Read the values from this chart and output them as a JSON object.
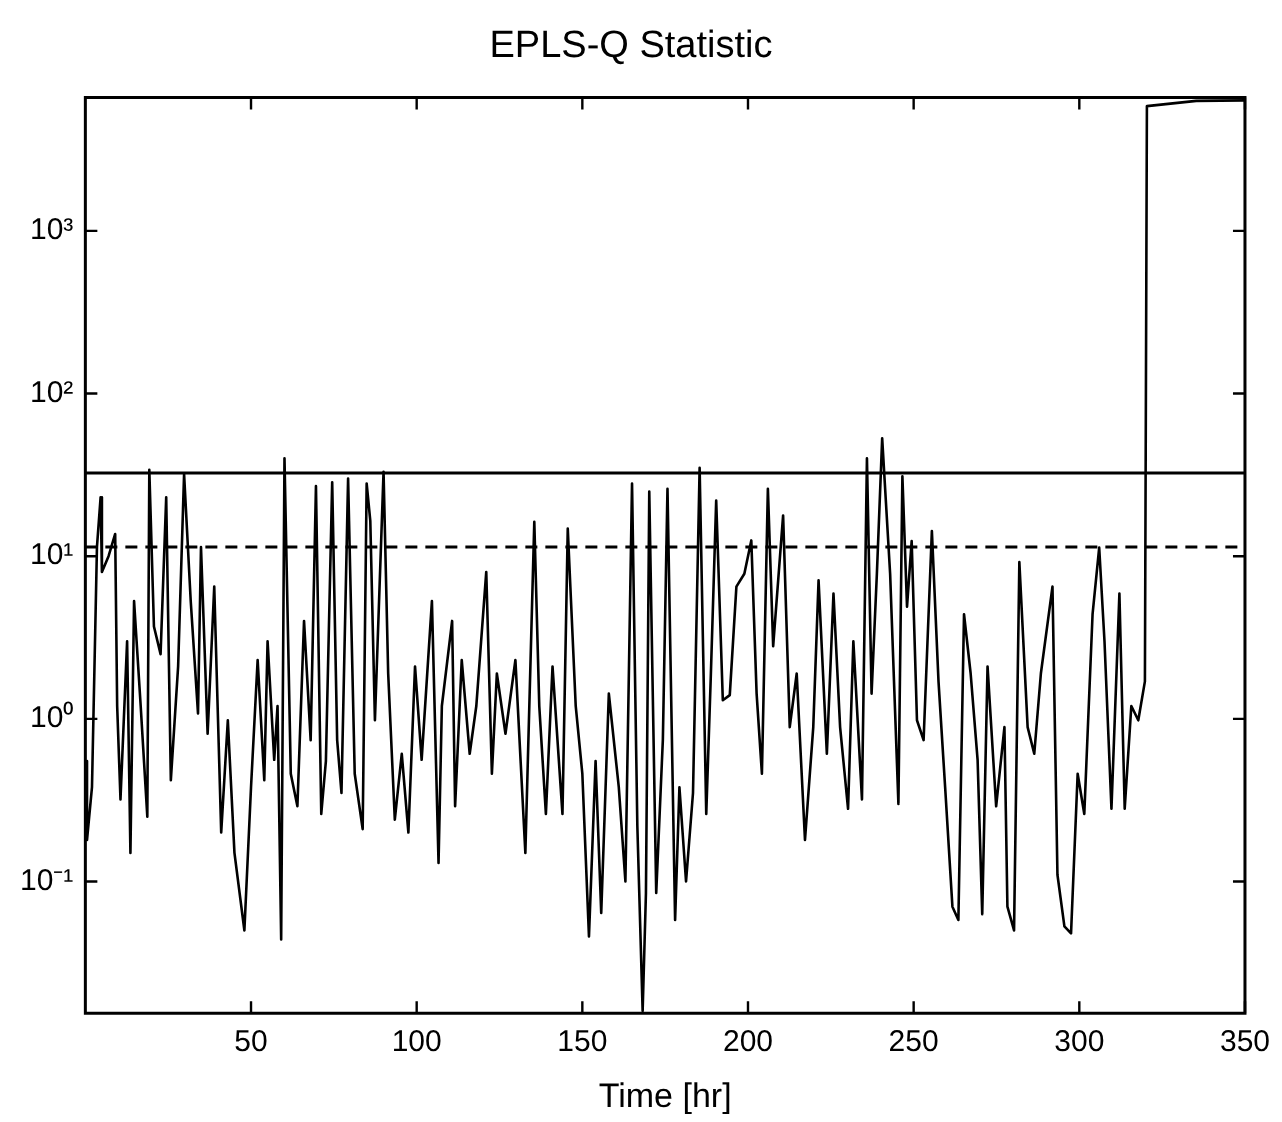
{
  "chart_data": {
    "type": "line",
    "title": "EPLS-Q Statistic",
    "xlabel": "Time [hr]",
    "x": [
      0.3,
      0.5,
      2,
      3.5,
      4.6,
      5,
      7,
      9,
      9.6,
      10.6,
      12.6,
      13.6,
      14.7,
      16.7,
      18.7,
      19.3,
      20.7,
      22.7,
      24.4,
      25.8,
      28,
      29.8,
      31.8,
      34,
      34.9,
      36.9,
      38.9,
      41,
      43,
      45,
      48,
      50,
      52,
      54,
      55,
      57,
      58,
      59.1,
      60.1,
      62,
      64,
      66,
      68,
      69.6,
      71.2,
      72.6,
      74.5,
      76,
      77.3,
      79.3,
      81.3,
      83.7,
      84.9,
      86,
      87.4,
      90,
      91.4,
      93.4,
      95.5,
      97.5,
      99.5,
      101.5,
      104.6,
      106.6,
      107.6,
      110.7,
      111.6,
      113.6,
      116,
      118,
      121,
      122.7,
      124.2,
      126.8,
      129.8,
      132.8,
      135.5,
      137,
      139,
      141,
      144,
      145.6,
      148,
      150,
      152,
      154,
      155.7,
      158,
      161,
      163,
      165,
      166.6,
      168.2,
      169.2,
      170.2,
      172.3,
      174.3,
      175.7,
      178,
      179.3,
      181.3,
      183.4,
      185.4,
      187.4,
      188.8,
      190.4,
      192.4,
      194.5,
      196.5,
      198.9,
      201,
      202.6,
      204.2,
      206,
      207.6,
      210.6,
      212.6,
      214.7,
      217.2,
      219.7,
      221.3,
      223.8,
      225.8,
      227.8,
      230.2,
      231.8,
      234.4,
      235.9,
      237.3,
      238.9,
      240.5,
      242.9,
      245.4,
      246.6,
      248,
      249.4,
      251,
      253,
      255.5,
      257.5,
      259.5,
      261.7,
      263.5,
      265.2,
      267.2,
      269.3,
      270.7,
      272.3,
      274.9,
      277.4,
      278.3,
      280.3,
      281.9,
      284.4,
      286.4,
      288.4,
      291.9,
      293.4,
      295.5,
      297.5,
      299.5,
      301.5,
      304,
      306,
      307.6,
      309.7,
      312.1,
      313.7,
      315.7,
      317.8,
      319.8,
      320.4,
      335.3,
      350
    ],
    "series": [
      {
        "color": "#000000",
        "values": [
          0.55,
          0.18,
          0.38,
          11.4,
          23,
          8,
          10,
          13.7,
          1.2,
          0.32,
          3,
          0.15,
          5.3,
          1.2,
          0.25,
          34,
          3.7,
          2.5,
          23,
          0.42,
          2.1,
          32,
          5.3,
          1.08,
          11.4,
          0.81,
          6.5,
          0.2,
          0.98,
          0.15,
          0.05,
          0.38,
          2.3,
          0.42,
          3,
          0.56,
          1.2,
          0.044,
          40,
          0.46,
          0.29,
          4,
          0.74,
          27,
          0.26,
          0.55,
          28.5,
          0.74,
          0.35,
          30,
          0.46,
          0.21,
          28,
          16.5,
          0.98,
          33,
          1.9,
          0.24,
          0.61,
          0.2,
          2.1,
          0.56,
          5.3,
          0.13,
          1.2,
          4,
          0.29,
          2.3,
          0.61,
          1.2,
          8,
          0.46,
          1.9,
          0.81,
          2.3,
          0.15,
          16.3,
          1.2,
          0.26,
          2.1,
          0.26,
          14.8,
          1.2,
          0.46,
          0.046,
          0.55,
          0.064,
          1.43,
          0.38,
          0.1,
          28,
          0.22,
          0.016,
          0.085,
          25,
          0.085,
          0.74,
          26,
          0.058,
          0.38,
          0.1,
          0.35,
          35,
          0.26,
          1.9,
          22,
          1.3,
          1.4,
          6.5,
          7.8,
          12.5,
          1.43,
          0.46,
          26,
          2.8,
          17.8,
          0.89,
          1.9,
          0.18,
          0.89,
          7.1,
          0.61,
          5.9,
          0.89,
          0.28,
          3,
          0.32,
          40,
          1.43,
          7.8,
          53,
          7.8,
          0.3,
          31,
          4.9,
          12.4,
          0.98,
          0.74,
          14.3,
          1.7,
          0.38,
          0.07,
          0.058,
          4.4,
          1.9,
          0.56,
          0.063,
          2.1,
          0.29,
          0.89,
          0.07,
          0.05,
          9.2,
          0.89,
          0.61,
          1.9,
          6.5,
          0.11,
          0.053,
          0.048,
          0.46,
          0.26,
          4.4,
          11.3,
          3,
          0.28,
          5.9,
          0.28,
          1.2,
          0.98,
          1.7,
          5850,
          6300,
          6350
        ]
      }
    ],
    "xlim": [
      0,
      350
    ],
    "xticks": [
      50,
      100,
      150,
      200,
      250,
      300,
      350
    ],
    "ylim": [
      0.0155,
      6600
    ],
    "log": true,
    "yticks": [
      {
        "value": 0.1,
        "label": "10⁻¹"
      },
      {
        "value": 1,
        "label": "10⁰"
      },
      {
        "value": 10,
        "label": "10¹"
      },
      {
        "value": 100,
        "label": "10²"
      },
      {
        "value": 1000,
        "label": "10³"
      }
    ],
    "ref_lines": [
      {
        "axis": "y",
        "value": 32.5,
        "line_style": "solid"
      },
      {
        "axis": "y",
        "value": 11.4,
        "line_style": "dashed"
      }
    ],
    "grid": false,
    "legend": false,
    "marker": "none",
    "line_style": "solid"
  }
}
